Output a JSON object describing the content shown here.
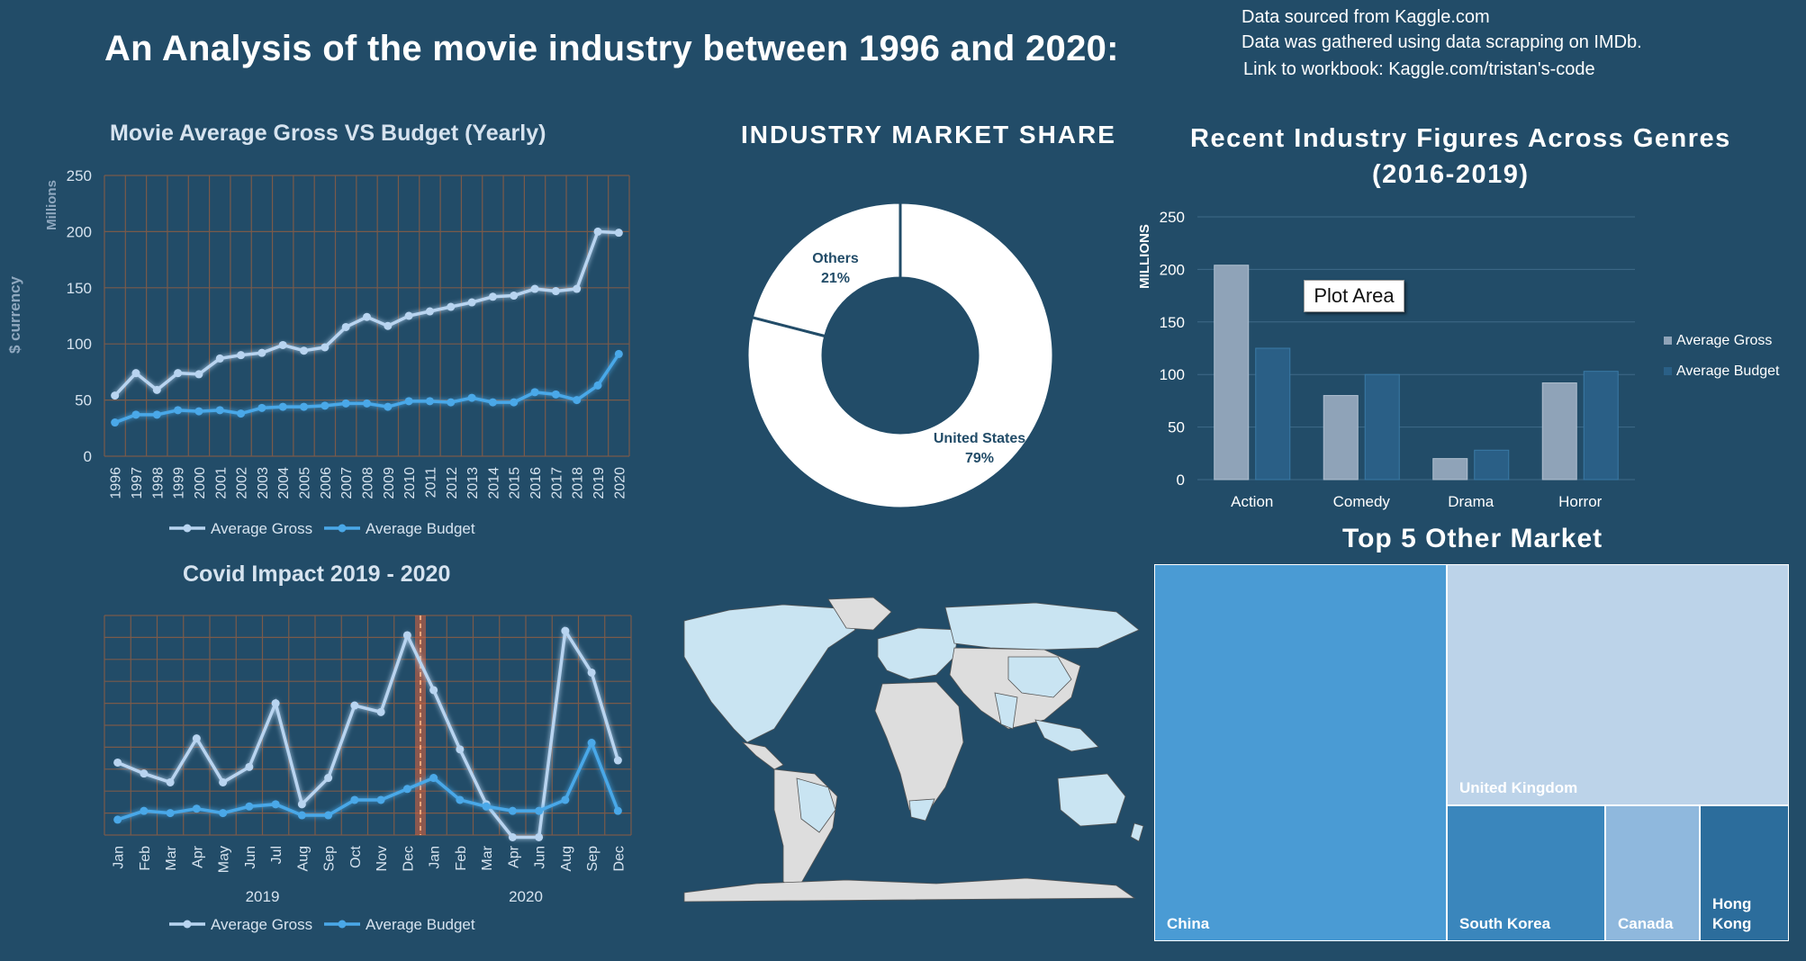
{
  "header": {
    "title": "An  Analysis of the movie industry between 1996 and 2020:",
    "source_lines": [
      "Data sourced from Kaggle.com",
      "Data was gathered using data scrapping on IMDb.",
      "Link to workbook: Kaggle.com/tristan's-code"
    ]
  },
  "colors": {
    "background": "#224c68",
    "gross_line": "#b8d4f0",
    "budget_line": "#4aa8e8",
    "bar_gross": "#8fa3b8",
    "bar_budget": "#2a5f86",
    "grid_line": "#7a5a4a",
    "covid_marker": "#e0623a",
    "map_highlight": "#c9e4f2",
    "map_other": "#dddddd"
  },
  "tooltip": {
    "label": "Plot Area"
  },
  "chart_data": [
    {
      "id": "yearly",
      "type": "line",
      "title": "Movie Average Gross VS Budget (Yearly)",
      "ylabel": "$ currency",
      "yunit": "Millions",
      "ylim": [
        0,
        250
      ],
      "yticks": [
        "0",
        "50",
        "100",
        "150",
        "200",
        "250"
      ],
      "categories": [
        "1996",
        "1997",
        "1998",
        "1999",
        "2000",
        "2001",
        "2002",
        "2003",
        "2004",
        "2005",
        "2006",
        "2007",
        "2008",
        "2009",
        "2010",
        "2011",
        "2012",
        "2013",
        "2014",
        "2015",
        "2016",
        "2017",
        "2018",
        "2019",
        "2020"
      ],
      "series": [
        {
          "name": "Average Gross",
          "values": [
            54,
            74,
            59,
            74,
            73,
            87,
            90,
            92,
            99,
            94,
            97,
            115,
            124,
            116,
            125,
            129,
            133,
            137,
            142,
            143,
            149,
            147,
            149,
            200,
            199
          ]
        },
        {
          "name": "Average Budget",
          "values": [
            30,
            37,
            37,
            41,
            40,
            41,
            38,
            43,
            44,
            44,
            45,
            47,
            47,
            44,
            49,
            49,
            48,
            52,
            48,
            48,
            57,
            55,
            50,
            63,
            91
          ]
        }
      ],
      "grid": true,
      "legend": "bottom"
    },
    {
      "id": "covid",
      "type": "line",
      "title": "Covid Impact 2019 - 2020",
      "categories": [
        "Jan",
        "Feb",
        "Mar",
        "Apr",
        "May",
        "Jun",
        "Jul",
        "Aug",
        "Sep",
        "Oct",
        "Nov",
        "Dec",
        "Jan",
        "Feb",
        "Mar",
        "Apr",
        "Jun",
        "Aug",
        "Sep",
        "Dec"
      ],
      "groups": [
        {
          "label": "2019",
          "count": 12
        },
        {
          "label": "2020",
          "count": 8
        }
      ],
      "ylim": [
        0,
        100
      ],
      "series": [
        {
          "name": "Average Gross",
          "values": [
            33,
            28,
            24,
            44,
            24,
            31,
            60,
            14,
            26,
            59,
            56,
            91,
            66,
            39,
            14,
            -1,
            -1,
            93,
            74,
            34
          ]
        },
        {
          "name": "Average Budget",
          "values": [
            7,
            11,
            10,
            12,
            10,
            13,
            14,
            9,
            9,
            16,
            16,
            21,
            26,
            16,
            13,
            11,
            11,
            16,
            42,
            11
          ]
        }
      ],
      "grid": true,
      "legend": "bottom",
      "marker_after_index": 11
    },
    {
      "id": "market_share",
      "type": "pie",
      "title": "INDUSTRY MARKET SHARE",
      "donut": true,
      "slices": [
        {
          "label": "United States",
          "value": 79,
          "pct_label": "79%"
        },
        {
          "label": "Others",
          "value": 21,
          "pct_label": "21%"
        }
      ]
    },
    {
      "id": "genres",
      "type": "bar",
      "title": "Recent Industry Figures Across Genres",
      "subtitle": "(2016-2019)",
      "ylabel": "MILLIONS",
      "ylim": [
        0,
        250
      ],
      "yticks": [
        "0",
        "50",
        "100",
        "150",
        "200",
        "250"
      ],
      "categories": [
        "Action",
        "Comedy",
        "Drama",
        "Horror"
      ],
      "series": [
        {
          "name": "Average Gross",
          "values": [
            204,
            80,
            20,
            92
          ]
        },
        {
          "name": "Average Budget",
          "values": [
            125,
            100,
            28,
            103
          ]
        }
      ],
      "legend": "right"
    },
    {
      "id": "top5",
      "type": "treemap",
      "title": "Top 5 Other Market",
      "items": [
        {
          "label": "China",
          "color": "#4a9bd4"
        },
        {
          "label": "United Kingdom",
          "color": "#bcd3e9"
        },
        {
          "label": "South Korea",
          "color": "#3a86bc"
        },
        {
          "label": "Canada",
          "color": "#8fb8dd"
        },
        {
          "label": "Hong Kong",
          "color": "#2c6d9c"
        }
      ]
    }
  ]
}
